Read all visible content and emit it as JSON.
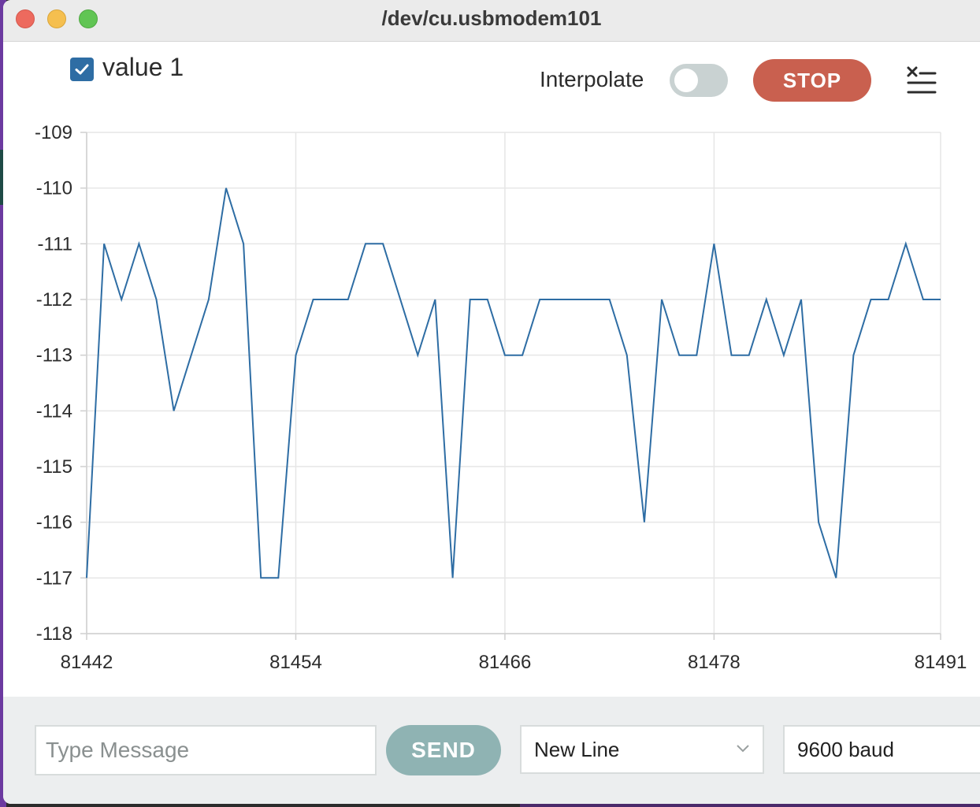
{
  "window": {
    "title": "/dev/cu.usbmodem101"
  },
  "toolbar": {
    "series_label": "value 1",
    "series_checked": true,
    "interpolate_label": "Interpolate",
    "interpolate_on": false,
    "stop_label": "STOP",
    "clear_icon": "clear-output-icon"
  },
  "footer": {
    "message_placeholder": "Type Message",
    "message_value": "",
    "send_label": "SEND",
    "line_ending": "New Line",
    "baud_rate": "9600 baud"
  },
  "colors": {
    "series_line": "#2e6da4",
    "stop_button": "#c9604f",
    "send_button": "#8fb3b3"
  },
  "chart_data": {
    "type": "line",
    "xlim": [
      81442,
      81491
    ],
    "ylim": [
      -118,
      -109
    ],
    "x_ticks": [
      "81442",
      "81454",
      "81466",
      "81478",
      "81491"
    ],
    "y_ticks": [
      "-109",
      "-110",
      "-111",
      "-112",
      "-113",
      "-114",
      "-115",
      "-116",
      "-117",
      "-118"
    ],
    "grid": true,
    "legend": "top-left",
    "series": [
      {
        "name": "value 1",
        "x": [
          81442,
          81443,
          81444,
          81445,
          81446,
          81447,
          81448,
          81449,
          81450,
          81451,
          81452,
          81453,
          81454,
          81455,
          81456,
          81457,
          81458,
          81459,
          81460,
          81461,
          81462,
          81463,
          81464,
          81465,
          81466,
          81467,
          81468,
          81469,
          81470,
          81471,
          81472,
          81473,
          81474,
          81475,
          81476,
          81477,
          81478,
          81479,
          81480,
          81481,
          81482,
          81483,
          81484,
          81485,
          81486,
          81487,
          81488,
          81489,
          81490,
          81491
        ],
        "values": [
          -117,
          -111,
          -112,
          -111,
          -112,
          -114,
          -113,
          -112,
          -110,
          -111,
          -117,
          -117,
          -113,
          -112,
          -112,
          -112,
          -111,
          -111,
          -112,
          -113,
          -112,
          -117,
          -112,
          -112,
          -113,
          -113,
          -112,
          -112,
          -112,
          -112,
          -112,
          -113,
          -116,
          -112,
          -113,
          -113,
          -111,
          -113,
          -113,
          -112,
          -113,
          -112,
          -116,
          -117,
          -113,
          -112,
          -112,
          -111,
          -112,
          -112
        ]
      }
    ]
  }
}
